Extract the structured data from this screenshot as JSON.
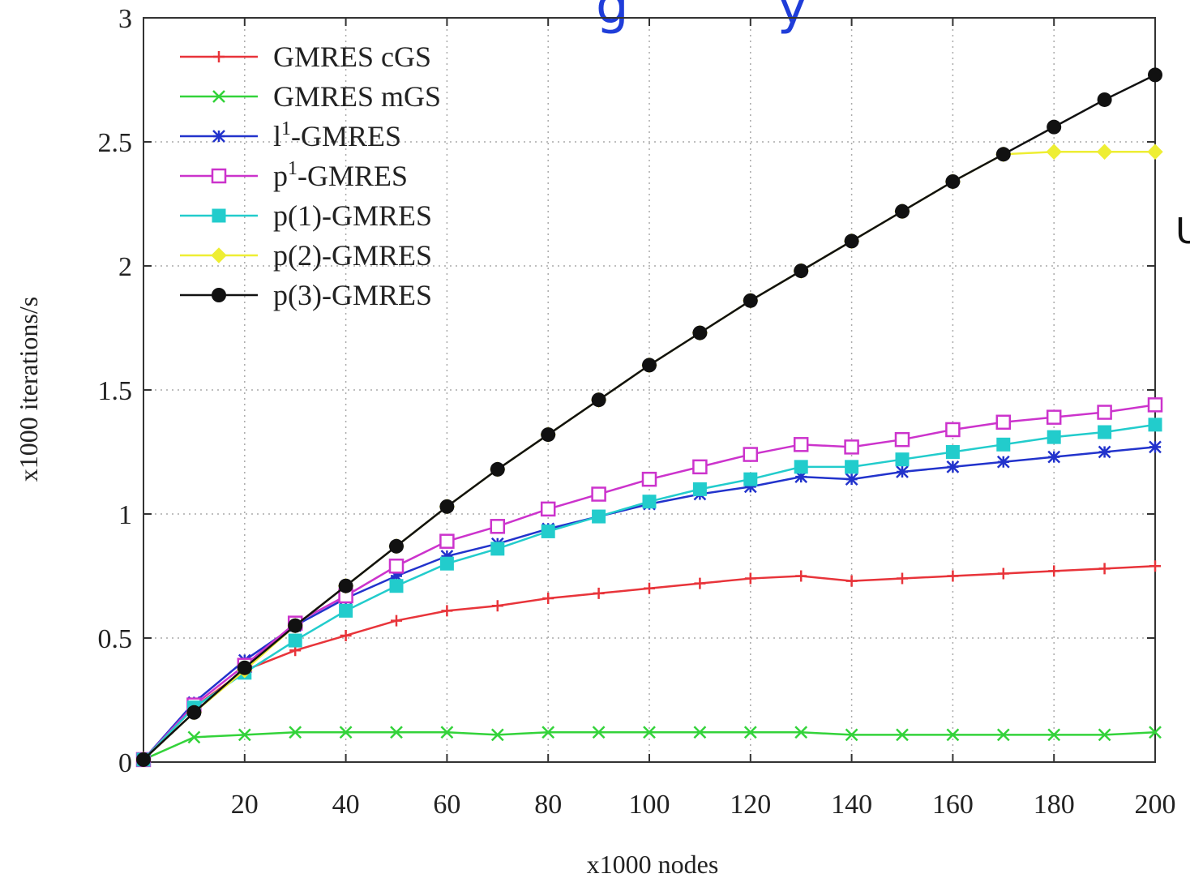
{
  "header_fragment": "g         y",
  "side_fragment": "U",
  "chart_data": {
    "type": "line",
    "title": "",
    "xlabel": "x1000 nodes",
    "ylabel": "x1000 iterations/s",
    "xlim": [
      0,
      200
    ],
    "ylim": [
      0,
      3
    ],
    "xticks": [
      20,
      40,
      60,
      80,
      100,
      120,
      140,
      160,
      180,
      200
    ],
    "yticks": [
      0,
      0.5,
      1,
      1.5,
      2,
      2.5,
      3
    ],
    "ytick_labels": [
      "0",
      "0.5",
      "1",
      "1.5",
      "2",
      "2.5",
      "3"
    ],
    "grid": true,
    "legend_position": "top-left",
    "x": [
      0,
      10,
      20,
      30,
      40,
      50,
      60,
      70,
      80,
      90,
      100,
      110,
      120,
      130,
      140,
      150,
      160,
      170,
      180,
      190,
      200
    ],
    "series": [
      {
        "name": "GMRES cGS",
        "color": "#e8343a",
        "marker": "plus",
        "values": [
          0.01,
          0.22,
          0.37,
          0.45,
          0.51,
          0.57,
          0.61,
          0.63,
          0.66,
          0.68,
          0.7,
          0.72,
          0.74,
          0.75,
          0.73,
          0.74,
          0.75,
          0.76,
          0.77,
          0.78,
          0.79
        ]
      },
      {
        "name": "GMRES mGS",
        "color": "#33d33a",
        "marker": "x",
        "values": [
          0.01,
          0.1,
          0.11,
          0.12,
          0.12,
          0.12,
          0.12,
          0.11,
          0.12,
          0.12,
          0.12,
          0.12,
          0.12,
          0.12,
          0.11,
          0.11,
          0.11,
          0.11,
          0.11,
          0.11,
          0.12
        ]
      },
      {
        "name": "l1-GMRES",
        "name_base": "l",
        "name_sup": "1",
        "name_rest": "-GMRES",
        "color": "#2233cc",
        "marker": "star",
        "values": [
          0.01,
          0.24,
          0.41,
          0.55,
          0.66,
          0.75,
          0.83,
          0.88,
          0.94,
          0.99,
          1.04,
          1.08,
          1.11,
          1.15,
          1.14,
          1.17,
          1.19,
          1.21,
          1.23,
          1.25,
          1.27
        ]
      },
      {
        "name": "p1-GMRES",
        "name_base": "p",
        "name_sup": "1",
        "name_rest": "-GMRES",
        "color": "#cc33cc",
        "marker": "square-open",
        "values": [
          0.01,
          0.23,
          0.39,
          0.56,
          0.67,
          0.79,
          0.89,
          0.95,
          1.02,
          1.08,
          1.14,
          1.19,
          1.24,
          1.28,
          1.27,
          1.3,
          1.34,
          1.37,
          1.39,
          1.41,
          1.44
        ]
      },
      {
        "name": "p(1)-GMRES",
        "color": "#22cccc",
        "marker": "square-filled",
        "values": [
          0.01,
          0.22,
          0.36,
          0.49,
          0.61,
          0.71,
          0.8,
          0.86,
          0.93,
          0.99,
          1.05,
          1.1,
          1.14,
          1.19,
          1.19,
          1.22,
          1.25,
          1.28,
          1.31,
          1.33,
          1.36
        ]
      },
      {
        "name": "p(2)-GMRES",
        "color": "#eeee33",
        "marker": "diamond",
        "values": [
          0.01,
          0.2,
          0.37,
          0.55,
          0.71,
          0.87,
          1.03,
          1.18,
          1.32,
          1.46,
          1.6,
          1.73,
          1.86,
          1.98,
          2.1,
          2.22,
          2.34,
          2.45,
          2.46,
          2.46,
          2.46
        ]
      },
      {
        "name": "p(3)-GMRES",
        "color": "#111111",
        "marker": "circle-filled",
        "values": [
          0.01,
          0.2,
          0.38,
          0.55,
          0.71,
          0.87,
          1.03,
          1.18,
          1.32,
          1.46,
          1.6,
          1.73,
          1.86,
          1.98,
          2.1,
          2.22,
          2.34,
          2.45,
          2.56,
          2.67,
          2.77
        ]
      }
    ]
  }
}
